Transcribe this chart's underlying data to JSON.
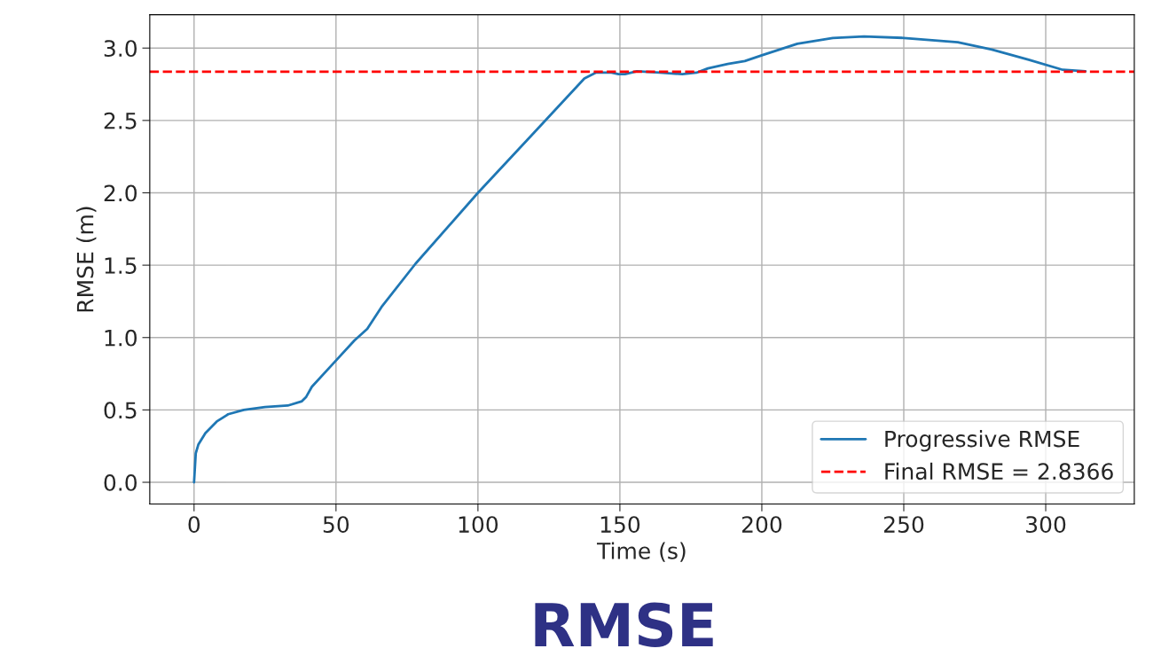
{
  "chart_data": {
    "type": "line",
    "title": "RMSE",
    "xlabel": "Time (s)",
    "ylabel": "RMSE (m)",
    "series": [
      {
        "name": "Progressive RMSE",
        "color": "#1f77b4",
        "x": [
          0,
          0.6,
          1.5,
          4,
          8,
          12,
          17.5,
          25,
          33,
          38,
          39.5,
          41.5,
          49,
          56.5,
          61,
          66,
          78,
          100,
          119,
          137.5,
          141.5,
          147,
          149.5,
          151.8,
          156,
          164,
          172,
          177,
          181,
          188,
          194,
          200,
          212.5,
          225,
          236,
          250,
          269,
          281,
          294,
          306,
          314
        ],
        "values": [
          0,
          0.2,
          0.26,
          0.34,
          0.42,
          0.47,
          0.5,
          0.52,
          0.53,
          0.56,
          0.59,
          0.66,
          0.82,
          0.98,
          1.06,
          1.21,
          1.51,
          2.0,
          2.4,
          2.79,
          2.83,
          2.83,
          2.82,
          2.82,
          2.84,
          2.83,
          2.82,
          2.83,
          2.86,
          2.89,
          2.91,
          2.95,
          3.03,
          3.07,
          3.08,
          3.07,
          3.04,
          2.99,
          2.92,
          2.85,
          2.84
        ]
      }
    ],
    "ref_lines": [
      {
        "axis": "y",
        "value": 2.8366,
        "label": "Final RMSE = 2.8366",
        "color": "#ff0000",
        "line_style": "dashed"
      }
    ],
    "xlim": [
      -15.6,
      331.2
    ],
    "ylim": [
      -0.15,
      3.23
    ],
    "xticks": [
      0,
      50,
      100,
      150,
      200,
      250,
      300
    ],
    "yticks": [
      {
        "value": 0,
        "label": "0.0"
      },
      {
        "value": 0.5,
        "label": "0.5"
      },
      {
        "value": 1,
        "label": "1.0"
      },
      {
        "value": 1.5,
        "label": "1.5"
      },
      {
        "value": 2,
        "label": "2.0"
      },
      {
        "value": 2.5,
        "label": "2.5"
      },
      {
        "value": 3,
        "label": "3.0"
      }
    ],
    "grid": true,
    "legend": "bottom right",
    "line_style": "solid",
    "marker": "none"
  }
}
